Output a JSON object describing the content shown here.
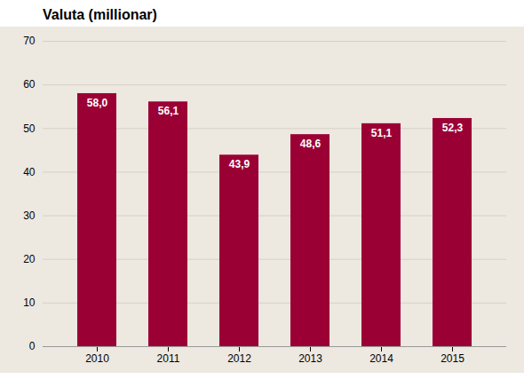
{
  "chart_data": {
    "type": "bar",
    "title": "Valuta (millionar)",
    "categories": [
      "2010",
      "2011",
      "2012",
      "2013",
      "2014",
      "2015"
    ],
    "values": [
      58.0,
      56.1,
      43.9,
      48.6,
      51.1,
      52.3
    ],
    "value_labels": [
      "58,0",
      "56,1",
      "43,9",
      "48,6",
      "51,1",
      "52,3"
    ],
    "data_labels": true,
    "color": "#9B0035",
    "ylim": [
      0,
      70
    ],
    "yticks": [
      0,
      10,
      20,
      30,
      40,
      50,
      60,
      70
    ],
    "grid": true
  }
}
